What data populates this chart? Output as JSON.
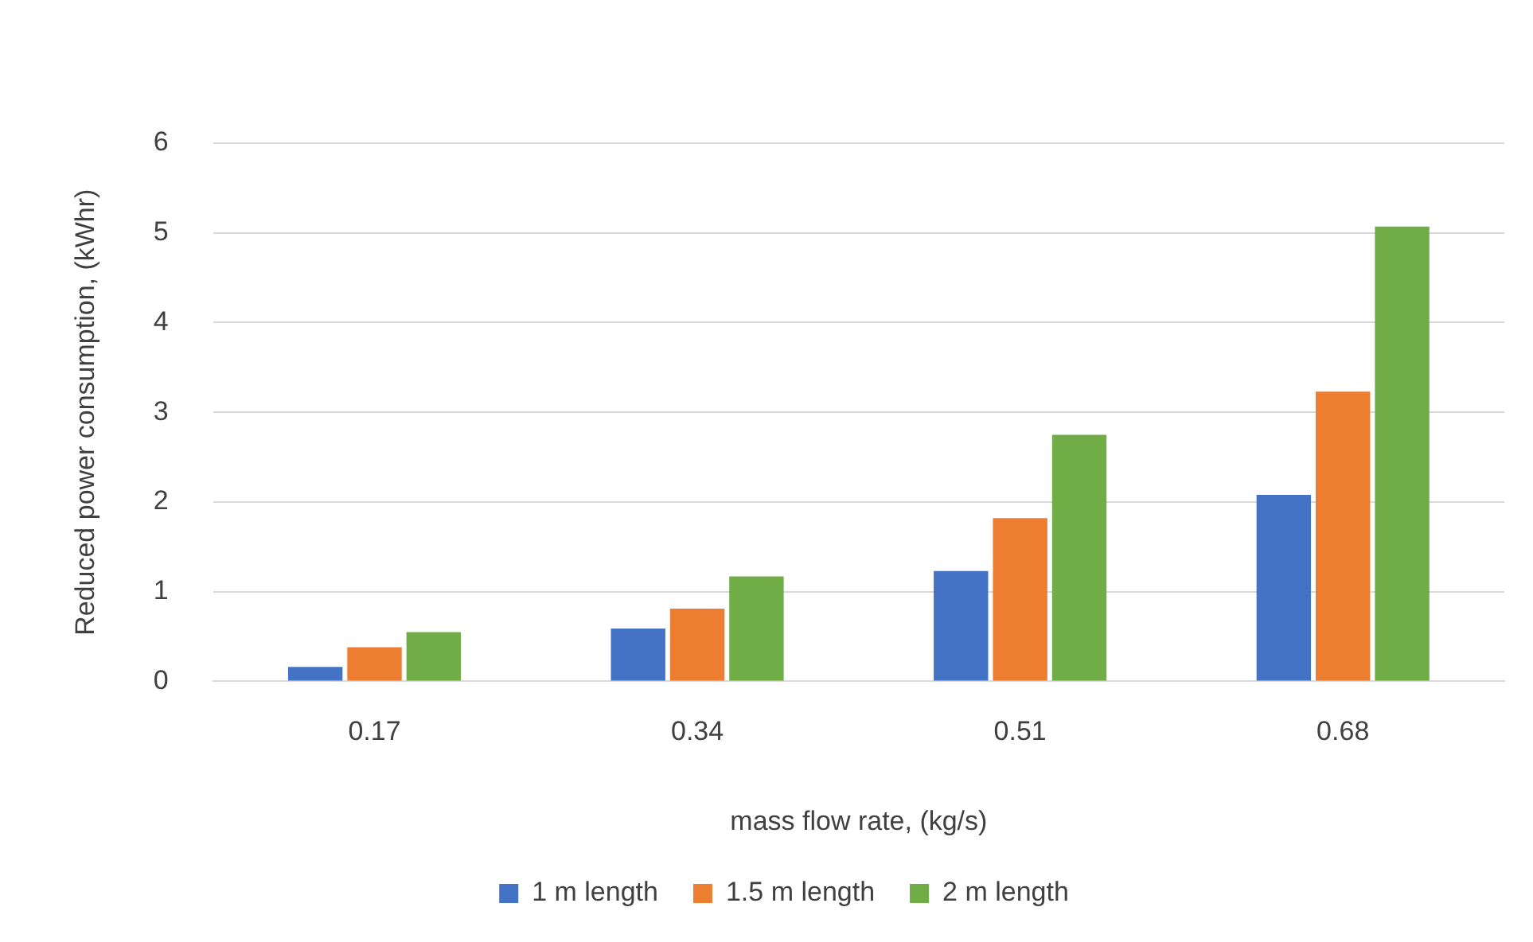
{
  "chart_data": {
    "type": "bar",
    "xlabel": "mass flow rate, (kg/s)",
    "ylabel": "Reduced power consumption, (kWhr)",
    "categories": [
      "0.17",
      "0.34",
      "0.51",
      "0.68"
    ],
    "series": [
      {
        "name": "1 m length",
        "color": "#4472c4",
        "values": [
          0.16,
          0.59,
          1.23,
          2.08
        ]
      },
      {
        "name": "1.5 m length",
        "color": "#ed7d31",
        "values": [
          0.38,
          0.81,
          1.82,
          3.23
        ]
      },
      {
        "name": "2 m length",
        "color": "#70ad47",
        "values": [
          0.55,
          1.17,
          2.75,
          5.07
        ]
      }
    ],
    "ylim": [
      0,
      6
    ],
    "yticks": [
      0,
      1,
      2,
      3,
      4,
      5,
      6
    ],
    "grid": "y",
    "legend": "bottom"
  }
}
